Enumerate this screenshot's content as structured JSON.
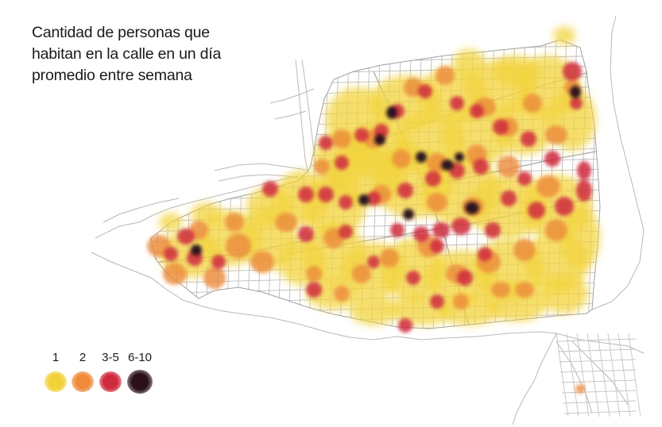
{
  "title_lines": [
    "Cantidad de personas que",
    "habitan en la calle en un día",
    "promedio entre semana"
  ],
  "legend": [
    {
      "label": "1",
      "color": "#f2d23a"
    },
    {
      "label": "2",
      "color": "#ee8a3a"
    },
    {
      "label": "3-5",
      "color": "#cf2b3c"
    },
    {
      "label": "6-10",
      "color": "#2a1018"
    }
  ]
}
